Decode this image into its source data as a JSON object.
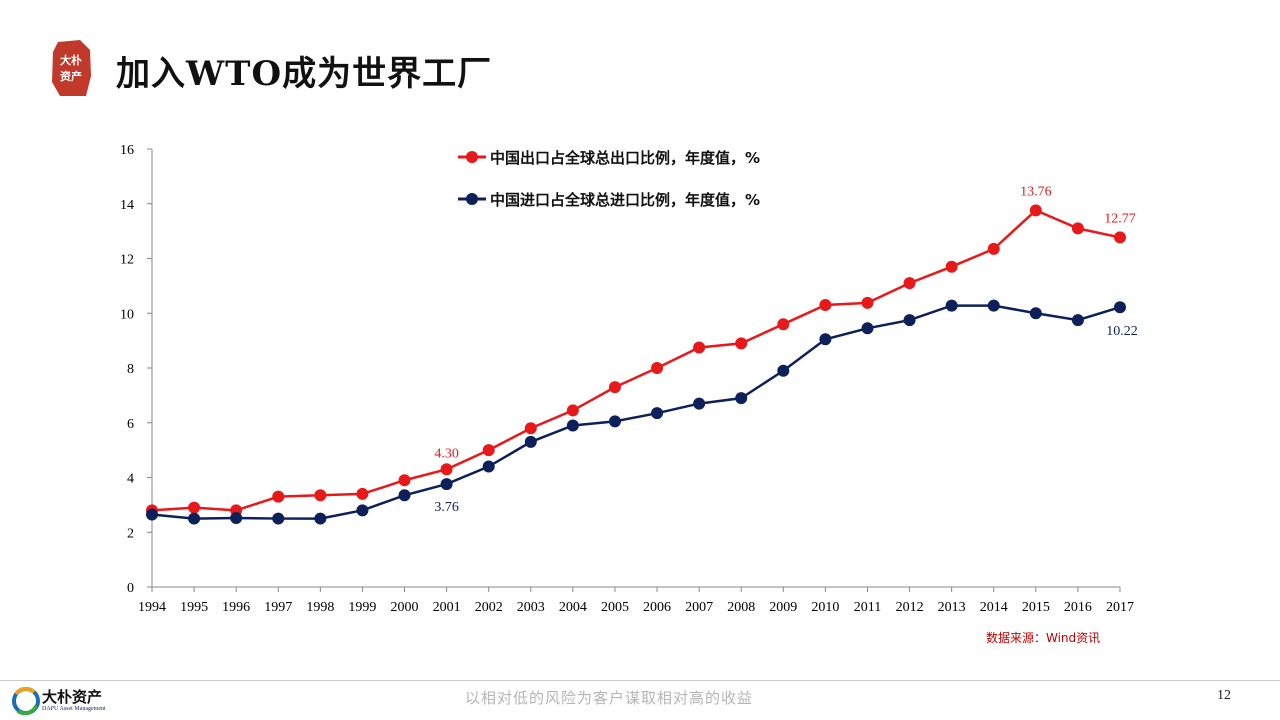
{
  "header": {
    "title": "加入WTO成为世界工厂",
    "logo_text": "大朴资产"
  },
  "chart_data": {
    "type": "line",
    "x": [
      "1994",
      "1995",
      "1996",
      "1997",
      "1998",
      "1999",
      "2000",
      "2001",
      "2002",
      "2003",
      "2004",
      "2005",
      "2006",
      "2007",
      "2008",
      "2009",
      "2010",
      "2011",
      "2012",
      "2013",
      "2014",
      "2015",
      "2016",
      "2017"
    ],
    "ylim": [
      0,
      16
    ],
    "yticks": [
      0,
      2,
      4,
      6,
      8,
      10,
      12,
      14,
      16
    ],
    "grid": false,
    "legend_position": "top-center",
    "series": [
      {
        "name": "中国出口占全球总出口比例，年度值，%",
        "color": "#e8191b",
        "values": [
          2.8,
          2.9,
          2.8,
          3.3,
          3.35,
          3.4,
          3.9,
          4.3,
          5.0,
          5.8,
          6.45,
          7.3,
          8.0,
          8.75,
          8.9,
          9.6,
          10.3,
          10.38,
          11.1,
          11.7,
          12.35,
          13.76,
          13.1,
          12.77
        ],
        "labels": [
          {
            "x": "2001",
            "text": "4.30"
          },
          {
            "x": "2015",
            "text": "13.76"
          },
          {
            "x": "2017",
            "text": "12.77"
          }
        ]
      },
      {
        "name": "中国进口占全球总进口比例，年度值，%",
        "color": "#0d2059",
        "values": [
          2.65,
          2.5,
          2.52,
          2.5,
          2.5,
          2.8,
          3.35,
          3.76,
          4.4,
          5.3,
          5.9,
          6.05,
          6.35,
          6.7,
          6.9,
          7.9,
          9.05,
          9.45,
          9.75,
          10.28,
          10.28,
          10.0,
          9.75,
          10.22
        ],
        "labels": [
          {
            "x": "2001",
            "text": "3.76"
          },
          {
            "x": "2017",
            "text": "10.22"
          }
        ]
      }
    ]
  },
  "source": "数据来源：Wind资讯",
  "footer": {
    "company": "大朴资产",
    "company_en": "DAPU Asset Management",
    "slogan": "以相对低的风险为客户谋取相对高的收益",
    "page_number": "12"
  },
  "colors": {
    "export": "#e8191b",
    "import": "#0d2059",
    "seal": "#c0392b"
  }
}
